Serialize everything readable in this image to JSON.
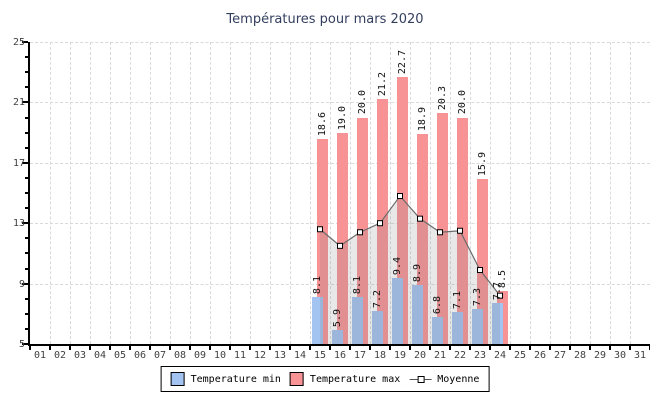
{
  "chart_data": {
    "type": "bar",
    "title": "Températures pour mars 2020",
    "x_categories": [
      "01",
      "02",
      "03",
      "04",
      "05",
      "06",
      "07",
      "08",
      "09",
      "10",
      "11",
      "12",
      "13",
      "14",
      "15",
      "16",
      "17",
      "18",
      "19",
      "20",
      "21",
      "22",
      "23",
      "24",
      "25",
      "26",
      "27",
      "28",
      "29",
      "30",
      "31"
    ],
    "ylim": [
      5,
      25
    ],
    "y_major_ticks": [
      5,
      9,
      13,
      17,
      21,
      25
    ],
    "y_minor_step": 1,
    "grid": "dashed",
    "legend_position": "bottom",
    "series": [
      {
        "name": "Temperature min",
        "type": "bar"
      },
      {
        "name": "Temperature max",
        "type": "bar"
      },
      {
        "name": "Moyenne",
        "type": "line-area"
      }
    ],
    "records": [
      {
        "day": 15,
        "min": 8.1,
        "max": 18.6,
        "avg": 12.6
      },
      {
        "day": 16,
        "min": 5.9,
        "max": 19.0,
        "avg": 11.5
      },
      {
        "day": 17,
        "min": 8.1,
        "max": 20.0,
        "avg": 12.4
      },
      {
        "day": 18,
        "min": 7.2,
        "max": 21.2,
        "avg": 13.0
      },
      {
        "day": 19,
        "min": 9.4,
        "max": 22.7,
        "avg": 14.8
      },
      {
        "day": 20,
        "min": 8.9,
        "max": 18.9,
        "avg": 13.3
      },
      {
        "day": 21,
        "min": 6.8,
        "max": 20.3,
        "avg": 12.4
      },
      {
        "day": 22,
        "min": 7.1,
        "max": 20.0,
        "avg": 12.5
      },
      {
        "day": 23,
        "min": 7.3,
        "max": 15.9,
        "avg": 9.9
      },
      {
        "day": 24,
        "min": 7.7,
        "max": 8.5,
        "avg": 8.2
      }
    ]
  },
  "legend": {
    "items": [
      {
        "swatch": "min",
        "label": "Temperature min"
      },
      {
        "swatch": "max",
        "label": "Temperature max"
      },
      {
        "swatch": "line",
        "label": "Moyenne"
      }
    ]
  },
  "colors": {
    "bar_min": "#a3c3f0",
    "bar_max": "#f79394",
    "area_fill": "rgba(128,128,128,0.18)",
    "line": "#6b6b6b",
    "marker_fill": "#ffffff",
    "marker_border": "#000000",
    "grid": "#d9d9d9",
    "axis": "#000000",
    "title": "#333f5f",
    "tick_label": "#3f3f3f",
    "value_label": "#111111"
  }
}
